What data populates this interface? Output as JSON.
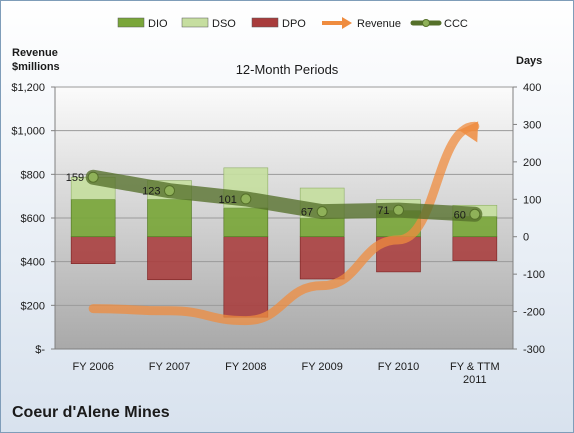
{
  "chart_data": {
    "type": "bar",
    "title": "12-Month Periods",
    "company": "Coeur d'Alene Mines",
    "ylabel_left": "Revenue $millions",
    "ylabel_right": "Days",
    "categories": [
      "FY 2006",
      "FY 2007",
      "FY 2008",
      "FY 2009",
      "FY 2010",
      "FY & TTM 2011"
    ],
    "ylim_left": [
      0,
      1200
    ],
    "ylim_right": [
      -300,
      400
    ],
    "yticks_left": [
      "$-",
      "$200",
      "$400",
      "$600",
      "$800",
      "$1,000",
      "$1,200"
    ],
    "yticks_left_values": [
      0,
      200,
      400,
      600,
      800,
      1000,
      1200
    ],
    "yticks_right_values": [
      -300,
      -200,
      -100,
      0,
      100,
      200,
      300,
      400
    ],
    "legend": [
      "DIO",
      "DSO",
      "DPO",
      "Revenue",
      "CCC"
    ],
    "legend_position": "top",
    "series": [
      {
        "name": "DIO",
        "axis": "right",
        "stack": "positive",
        "values": [
          100,
          100,
          77,
          50,
          70,
          54
        ]
      },
      {
        "name": "DSO",
        "axis": "right",
        "stack": "positive",
        "values": [
          59,
          50,
          107,
          80,
          29,
          30
        ]
      },
      {
        "name": "DPO",
        "axis": "right",
        "stack": "negative",
        "values": [
          -72,
          -115,
          -215,
          -113,
          -94,
          -64
        ]
      },
      {
        "name": "Revenue",
        "axis": "left",
        "type": "line",
        "values": [
          185,
          175,
          130,
          290,
          500,
          1020
        ]
      },
      {
        "name": "CCC",
        "axis": "right",
        "type": "line",
        "values": [
          159,
          123,
          101,
          67,
          71,
          60
        ],
        "labels": [
          "159",
          "123",
          "101",
          "67",
          "71",
          "60"
        ]
      }
    ],
    "colors": {
      "DIO": "#7aa63a",
      "DSO": "#c6dea0",
      "DPO": "#a83c3c",
      "Revenue": "#ef8c3f",
      "CCC": "#55702a",
      "background_top": "#ffffff",
      "background_bottom": "#b8b8b8"
    },
    "grid": true
  }
}
